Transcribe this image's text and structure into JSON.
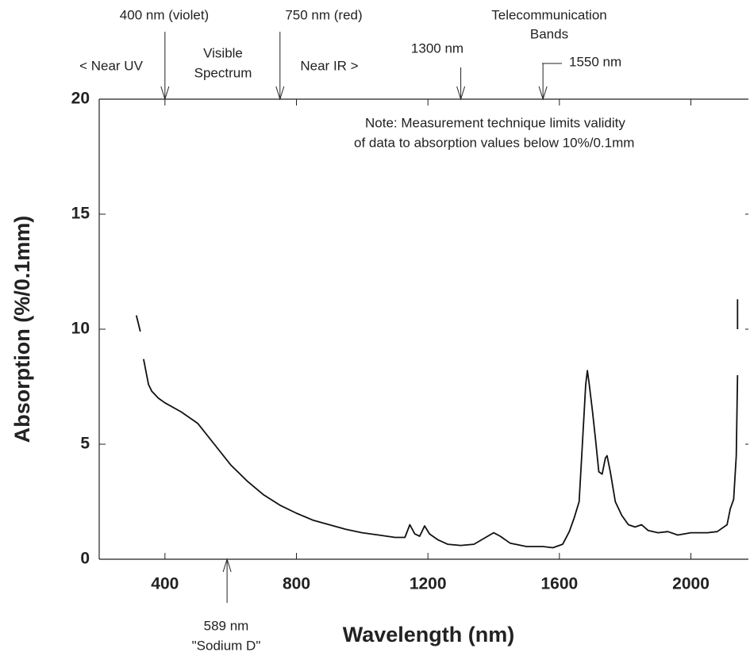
{
  "chart_data": {
    "type": "line",
    "x_label": "Wavelength (nm)",
    "y_label": "Absorption (%/0.1mm)",
    "xlim": [
      200,
      2175
    ],
    "ylim": [
      0,
      20
    ],
    "xticks": [
      400,
      800,
      1200,
      1600,
      2000
    ],
    "yticks": [
      0,
      5,
      10,
      15,
      20
    ],
    "color": "#111111",
    "x": [
      313,
      325,
      330,
      335,
      350,
      360,
      380,
      400,
      450,
      500,
      550,
      600,
      650,
      700,
      750,
      800,
      850,
      900,
      950,
      1000,
      1050,
      1100,
      1130,
      1145,
      1160,
      1175,
      1190,
      1205,
      1230,
      1260,
      1300,
      1340,
      1370,
      1400,
      1420,
      1450,
      1500,
      1550,
      1580,
      1610,
      1630,
      1645,
      1660,
      1670,
      1680,
      1685,
      1690,
      1700,
      1710,
      1720,
      1730,
      1740,
      1745,
      1755,
      1770,
      1790,
      1810,
      1830,
      1850,
      1870,
      1900,
      1930,
      1960,
      2000,
      2050,
      2080,
      2110,
      2120,
      2130,
      2138,
      2142,
      2142,
      2142,
      2142
    ],
    "values": [
      10.6,
      9.9,
      null,
      8.7,
      7.6,
      7.3,
      7.0,
      6.8,
      6.4,
      5.9,
      5.0,
      4.1,
      3.4,
      2.8,
      2.35,
      2.0,
      1.7,
      1.5,
      1.3,
      1.15,
      1.05,
      0.95,
      0.95,
      1.5,
      1.1,
      1.0,
      1.45,
      1.1,
      0.85,
      0.65,
      0.6,
      0.65,
      0.9,
      1.15,
      1.0,
      0.7,
      0.55,
      0.55,
      0.5,
      0.65,
      1.2,
      1.8,
      2.5,
      5.0,
      7.6,
      8.2,
      7.7,
      6.5,
      5.2,
      3.8,
      3.7,
      4.4,
      4.5,
      3.8,
      2.5,
      1.9,
      1.5,
      1.4,
      1.5,
      1.25,
      1.15,
      1.2,
      1.05,
      1.15,
      1.15,
      1.2,
      1.5,
      2.2,
      2.6,
      4.5,
      8.0,
      null,
      10.0,
      11.3
    ],
    "arrows": [
      {
        "label": [
          "400 nm (violet)"
        ],
        "x": 400
      },
      {
        "label": [
          "750 nm (red)"
        ],
        "x": 750
      },
      {
        "label": [
          "1300 nm"
        ],
        "x": 1300
      },
      {
        "label": [
          "1550 nm"
        ],
        "x": 1550
      },
      {
        "label": [
          "589 nm",
          "\"Sodium D\""
        ],
        "x": 589
      }
    ],
    "regions": [
      [
        "< Near UV"
      ],
      [
        "Visible",
        "Spectrum"
      ],
      [
        "Near IR >"
      ],
      [
        "Telecommunication",
        "Bands"
      ]
    ],
    "note": [
      "Note: Measurement technique limits validity",
      "of data to absorption values below 10%/0.1mm"
    ]
  }
}
